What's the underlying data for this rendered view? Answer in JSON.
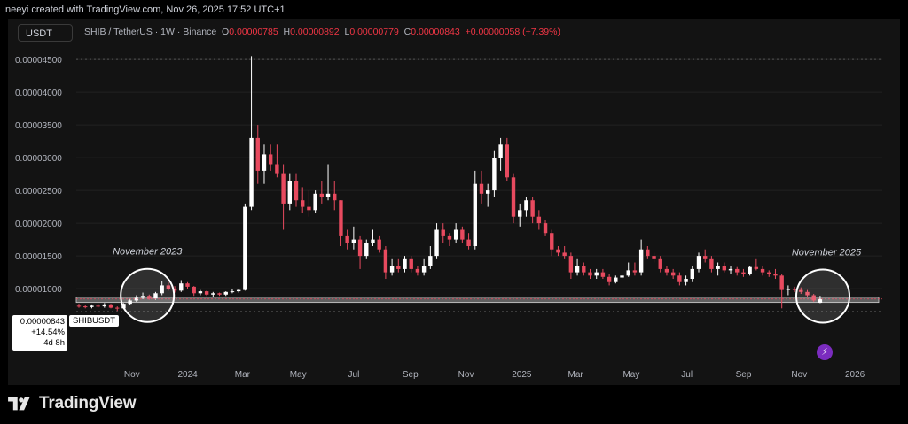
{
  "credit": "neeyi created with TradingView.com, Nov 26, 2025 17:52 UTC+1",
  "currency_button": "USDT",
  "header": {
    "symbol": "SHIB / TetherUS · 1W · Binance",
    "o_label": "O",
    "o_value": "0.00000785",
    "h_label": "H",
    "h_value": "0.00000892",
    "l_label": "L",
    "l_value": "0.00000779",
    "c_label": "C",
    "c_value": "0.00000843",
    "change": "+0.00000058 (+7.39%)"
  },
  "price_label": {
    "price": "0.00000843",
    "change_pct": "+14.54%",
    "countdown": "4d 8h"
  },
  "symbol_label": "SHIBUSDT",
  "brand": "TradingView",
  "colors": {
    "up": "#ffffff",
    "down": "#e84a5f",
    "background": "#131313",
    "grid": "#2a2a2a",
    "price_band": "#9e9e9e",
    "lightning_badge": "#7b2cbf"
  },
  "icons": {
    "logo": "tradingview-logo-icon",
    "badge": "lightning-icon"
  },
  "chart_data": {
    "type": "candlestick",
    "interval": "1W",
    "title": "SHIB / TetherUS · 1W · Binance",
    "y_axis": {
      "ticks": [
        1e-05,
        1.5e-05,
        2e-05,
        2.5e-05,
        3e-05,
        3.5e-05,
        4e-05,
        4.5e-05
      ],
      "tick_labels": [
        "0.00001000",
        "0.00001500",
        "0.00002000",
        "0.00002500",
        "0.00003000",
        "0.00003500",
        "0.00004000",
        "0.00004500"
      ],
      "range": [
        3.8e-06,
        4.65e-05
      ]
    },
    "x_axis": {
      "tick_labels": [
        "Nov",
        "2024",
        "Mar",
        "May",
        "Jul",
        "Sep",
        "Nov",
        "2025",
        "Mar",
        "May",
        "Jul",
        "Sep",
        "Nov",
        "2026"
      ],
      "tick_dates": [
        "2023-11-01",
        "2024-01-01",
        "2024-03-01",
        "2024-05-01",
        "2024-07-01",
        "2024-09-01",
        "2024-11-01",
        "2025-01-01",
        "2025-03-01",
        "2025-05-01",
        "2025-07-01",
        "2025-09-01",
        "2025-11-01",
        "2026-01-01"
      ],
      "range": [
        "2023-09-01",
        "2026-01-31"
      ]
    },
    "horizontal_band": {
      "low": 7.9e-06,
      "high": 8.7e-06
    },
    "annotations": [
      {
        "text": "November 2023",
        "date": "2023-11-15",
        "price": 8.7e-06,
        "shape": "circle"
      },
      {
        "text": "November 2025",
        "date": "2025-11-24",
        "price": 8.6e-06,
        "shape": "circle"
      }
    ],
    "candles": [
      {
        "date": "2023-09-01",
        "o": 7.4e-06,
        "h": 7.7e-06,
        "l": 7.1e-06,
        "c": 7.3e-06
      },
      {
        "date": "2023-09-08",
        "o": 7.3e-06,
        "h": 7.5e-06,
        "l": 7e-06,
        "c": 7.2e-06
      },
      {
        "date": "2023-09-15",
        "o": 7.2e-06,
        "h": 7.6e-06,
        "l": 7e-06,
        "c": 7.4e-06
      },
      {
        "date": "2023-09-22",
        "o": 7.4e-06,
        "h": 7.7e-06,
        "l": 7.1e-06,
        "c": 7.3e-06
      },
      {
        "date": "2023-09-29",
        "o": 7.3e-06,
        "h": 7.8e-06,
        "l": 7.1e-06,
        "c": 7.6e-06
      },
      {
        "date": "2023-10-06",
        "o": 7.6e-06,
        "h": 7.7e-06,
        "l": 7e-06,
        "c": 7.1e-06
      },
      {
        "date": "2023-10-13",
        "o": 7.1e-06,
        "h": 7.3e-06,
        "l": 6.6e-06,
        "c": 7e-06
      },
      {
        "date": "2023-10-20",
        "o": 7e-06,
        "h": 7.8e-06,
        "l": 6.9e-06,
        "c": 7.7e-06
      },
      {
        "date": "2023-10-27",
        "o": 7.7e-06,
        "h": 8.5e-06,
        "l": 7.5e-06,
        "c": 8.2e-06
      },
      {
        "date": "2023-11-03",
        "o": 8.2e-06,
        "h": 9e-06,
        "l": 8e-06,
        "c": 8.6e-06
      },
      {
        "date": "2023-11-10",
        "o": 8.6e-06,
        "h": 9.4e-06,
        "l": 8.4e-06,
        "c": 8.9e-06
      },
      {
        "date": "2023-11-17",
        "o": 8.9e-06,
        "h": 9.1e-06,
        "l": 8.3e-06,
        "c": 8.5e-06
      },
      {
        "date": "2023-11-24",
        "o": 8.5e-06,
        "h": 9.5e-06,
        "l": 8.3e-06,
        "c": 9.3e-06
      },
      {
        "date": "2023-12-01",
        "o": 9.3e-06,
        "h": 1.12e-05,
        "l": 9e-06,
        "c": 1.05e-05
      },
      {
        "date": "2023-12-08",
        "o": 1.05e-05,
        "h": 1.1e-05,
        "l": 9.7e-06,
        "c": 1e-05
      },
      {
        "date": "2023-12-15",
        "o": 1e-05,
        "h": 1.04e-05,
        "l": 9.4e-06,
        "c": 9.7e-06
      },
      {
        "date": "2023-12-22",
        "o": 9.7e-06,
        "h": 1.13e-05,
        "l": 9.5e-06,
        "c": 1.08e-05
      },
      {
        "date": "2023-12-29",
        "o": 1.08e-05,
        "h": 1.1e-05,
        "l": 1e-05,
        "c": 1.03e-05
      },
      {
        "date": "2024-01-05",
        "o": 1.03e-05,
        "h": 1.04e-05,
        "l": 8.9e-06,
        "c": 9.3e-06
      },
      {
        "date": "2024-01-12",
        "o": 9.3e-06,
        "h": 9.8e-06,
        "l": 9e-06,
        "c": 9.6e-06
      },
      {
        "date": "2024-01-19",
        "o": 9.6e-06,
        "h": 9.7e-06,
        "l": 8.9e-06,
        "c": 9.1e-06
      },
      {
        "date": "2024-01-26",
        "o": 9.1e-06,
        "h": 9.5e-06,
        "l": 8.8e-06,
        "c": 9.3e-06
      },
      {
        "date": "2024-02-02",
        "o": 9.3e-06,
        "h": 9.4e-06,
        "l": 8.9e-06,
        "c": 9.1e-06
      },
      {
        "date": "2024-02-09",
        "o": 9.1e-06,
        "h": 9.6e-06,
        "l": 8.9e-06,
        "c": 9.5e-06
      },
      {
        "date": "2024-02-16",
        "o": 9.5e-06,
        "h": 1e-05,
        "l": 9.3e-06,
        "c": 9.6e-06
      },
      {
        "date": "2024-02-23",
        "o": 9.6e-06,
        "h": 1e-05,
        "l": 9.4e-06,
        "c": 9.8e-06
      },
      {
        "date": "2024-03-01",
        "o": 9.8e-06,
        "h": 2.3e-05,
        "l": 9.7e-06,
        "c": 2.25e-05
      },
      {
        "date": "2024-03-08",
        "o": 2.25e-05,
        "h": 4.55e-05,
        "l": 2.2e-05,
        "c": 3.3e-05
      },
      {
        "date": "2024-03-15",
        "o": 3.3e-05,
        "h": 3.5e-05,
        "l": 2.6e-05,
        "c": 2.8e-05
      },
      {
        "date": "2024-03-22",
        "o": 2.8e-05,
        "h": 3.2e-05,
        "l": 2.6e-05,
        "c": 3.05e-05
      },
      {
        "date": "2024-03-29",
        "o": 3.05e-05,
        "h": 3.2e-05,
        "l": 2.8e-05,
        "c": 2.9e-05
      },
      {
        "date": "2024-04-05",
        "o": 2.9e-05,
        "h": 3.2e-05,
        "l": 2.7e-05,
        "c": 2.75e-05
      },
      {
        "date": "2024-04-12",
        "o": 2.75e-05,
        "h": 2.9e-05,
        "l": 1.9e-05,
        "c": 2.3e-05
      },
      {
        "date": "2024-04-19",
        "o": 2.3e-05,
        "h": 2.75e-05,
        "l": 2.2e-05,
        "c": 2.65e-05
      },
      {
        "date": "2024-04-26",
        "o": 2.65e-05,
        "h": 2.75e-05,
        "l": 2.25e-05,
        "c": 2.35e-05
      },
      {
        "date": "2024-05-03",
        "o": 2.35e-05,
        "h": 2.55e-05,
        "l": 2.15e-05,
        "c": 2.25e-05
      },
      {
        "date": "2024-05-10",
        "o": 2.25e-05,
        "h": 2.5e-05,
        "l": 2.1e-05,
        "c": 2.2e-05
      },
      {
        "date": "2024-05-17",
        "o": 2.2e-05,
        "h": 2.5e-05,
        "l": 2.15e-05,
        "c": 2.45e-05
      },
      {
        "date": "2024-05-24",
        "o": 2.45e-05,
        "h": 2.65e-05,
        "l": 2.3e-05,
        "c": 2.4e-05
      },
      {
        "date": "2024-05-31",
        "o": 2.4e-05,
        "h": 2.9e-05,
        "l": 2.35e-05,
        "c": 2.45e-05
      },
      {
        "date": "2024-06-07",
        "o": 2.45e-05,
        "h": 2.65e-05,
        "l": 2.2e-05,
        "c": 2.35e-05
      },
      {
        "date": "2024-06-14",
        "o": 2.35e-05,
        "h": 2.35e-05,
        "l": 1.65e-05,
        "c": 1.8e-05
      },
      {
        "date": "2024-06-21",
        "o": 1.8e-05,
        "h": 1.9e-05,
        "l": 1.6e-05,
        "c": 1.7e-05
      },
      {
        "date": "2024-06-28",
        "o": 1.7e-05,
        "h": 1.95e-05,
        "l": 1.6e-05,
        "c": 1.75e-05
      },
      {
        "date": "2024-07-05",
        "o": 1.75e-05,
        "h": 1.8e-05,
        "l": 1.3e-05,
        "c": 1.5e-05
      },
      {
        "date": "2024-07-12",
        "o": 1.5e-05,
        "h": 1.75e-05,
        "l": 1.45e-05,
        "c": 1.7e-05
      },
      {
        "date": "2024-07-19",
        "o": 1.7e-05,
        "h": 1.9e-05,
        "l": 1.65e-05,
        "c": 1.75e-05
      },
      {
        "date": "2024-07-26",
        "o": 1.75e-05,
        "h": 1.8e-05,
        "l": 1.55e-05,
        "c": 1.6e-05
      },
      {
        "date": "2024-08-02",
        "o": 1.6e-05,
        "h": 1.65e-05,
        "l": 1.15e-05,
        "c": 1.25e-05
      },
      {
        "date": "2024-08-09",
        "o": 1.25e-05,
        "h": 1.45e-05,
        "l": 1.2e-05,
        "c": 1.35e-05
      },
      {
        "date": "2024-08-16",
        "o": 1.35e-05,
        "h": 1.45e-05,
        "l": 1.25e-05,
        "c": 1.3e-05
      },
      {
        "date": "2024-08-23",
        "o": 1.3e-05,
        "h": 1.5e-05,
        "l": 1.25e-05,
        "c": 1.45e-05
      },
      {
        "date": "2024-08-30",
        "o": 1.45e-05,
        "h": 1.5e-05,
        "l": 1.25e-05,
        "c": 1.3e-05
      },
      {
        "date": "2024-09-06",
        "o": 1.3e-05,
        "h": 1.35e-05,
        "l": 1.2e-05,
        "c": 1.25e-05
      },
      {
        "date": "2024-09-13",
        "o": 1.25e-05,
        "h": 1.45e-05,
        "l": 1.2e-05,
        "c": 1.35e-05
      },
      {
        "date": "2024-09-20",
        "o": 1.35e-05,
        "h": 1.65e-05,
        "l": 1.3e-05,
        "c": 1.5e-05
      },
      {
        "date": "2024-09-27",
        "o": 1.5e-05,
        "h": 2e-05,
        "l": 1.45e-05,
        "c": 1.9e-05
      },
      {
        "date": "2024-10-04",
        "o": 1.9e-05,
        "h": 2e-05,
        "l": 1.7e-05,
        "c": 1.8e-05
      },
      {
        "date": "2024-10-11",
        "o": 1.8e-05,
        "h": 1.85e-05,
        "l": 1.65e-05,
        "c": 1.75e-05
      },
      {
        "date": "2024-10-18",
        "o": 1.75e-05,
        "h": 2e-05,
        "l": 1.7e-05,
        "c": 1.9e-05
      },
      {
        "date": "2024-10-25",
        "o": 1.9e-05,
        "h": 1.95e-05,
        "l": 1.7e-05,
        "c": 1.75e-05
      },
      {
        "date": "2024-11-01",
        "o": 1.75e-05,
        "h": 1.85e-05,
        "l": 1.6e-05,
        "c": 1.65e-05
      },
      {
        "date": "2024-11-08",
        "o": 1.65e-05,
        "h": 2.8e-05,
        "l": 1.6e-05,
        "c": 2.6e-05
      },
      {
        "date": "2024-11-15",
        "o": 2.6e-05,
        "h": 2.8e-05,
        "l": 2.3e-05,
        "c": 2.45e-05
      },
      {
        "date": "2024-11-22",
        "o": 2.45e-05,
        "h": 2.6e-05,
        "l": 2.25e-05,
        "c": 2.5e-05
      },
      {
        "date": "2024-11-29",
        "o": 2.5e-05,
        "h": 3.1e-05,
        "l": 2.4e-05,
        "c": 3e-05
      },
      {
        "date": "2024-12-06",
        "o": 3e-05,
        "h": 3.3e-05,
        "l": 2.8e-05,
        "c": 3.2e-05
      },
      {
        "date": "2024-12-13",
        "o": 3.2e-05,
        "h": 3.3e-05,
        "l": 2.65e-05,
        "c": 2.7e-05
      },
      {
        "date": "2024-12-20",
        "o": 2.7e-05,
        "h": 2.75e-05,
        "l": 2e-05,
        "c": 2.1e-05
      },
      {
        "date": "2024-12-27",
        "o": 2.1e-05,
        "h": 2.3e-05,
        "l": 1.95e-05,
        "c": 2.2e-05
      },
      {
        "date": "2025-01-03",
        "o": 2.2e-05,
        "h": 2.4e-05,
        "l": 2.1e-05,
        "c": 2.35e-05
      },
      {
        "date": "2025-01-10",
        "o": 2.35e-05,
        "h": 2.4e-05,
        "l": 2e-05,
        "c": 2.1e-05
      },
      {
        "date": "2025-01-17",
        "o": 2.1e-05,
        "h": 2.2e-05,
        "l": 1.9e-05,
        "c": 2e-05
      },
      {
        "date": "2025-01-24",
        "o": 2e-05,
        "h": 2.05e-05,
        "l": 1.8e-05,
        "c": 1.85e-05
      },
      {
        "date": "2025-01-31",
        "o": 1.85e-05,
        "h": 1.9e-05,
        "l": 1.5e-05,
        "c": 1.6e-05
      },
      {
        "date": "2025-02-07",
        "o": 1.6e-05,
        "h": 1.65e-05,
        "l": 1.5e-05,
        "c": 1.55e-05
      },
      {
        "date": "2025-02-14",
        "o": 1.55e-05,
        "h": 1.65e-05,
        "l": 1.45e-05,
        "c": 1.5e-05
      },
      {
        "date": "2025-02-21",
        "o": 1.5e-05,
        "h": 1.55e-05,
        "l": 1.15e-05,
        "c": 1.25e-05
      },
      {
        "date": "2025-02-28",
        "o": 1.25e-05,
        "h": 1.45e-05,
        "l": 1.2e-05,
        "c": 1.35e-05
      },
      {
        "date": "2025-03-07",
        "o": 1.35e-05,
        "h": 1.4e-05,
        "l": 1.2e-05,
        "c": 1.25e-05
      },
      {
        "date": "2025-03-14",
        "o": 1.25e-05,
        "h": 1.3e-05,
        "l": 1.15e-05,
        "c": 1.2e-05
      },
      {
        "date": "2025-03-21",
        "o": 1.2e-05,
        "h": 1.3e-05,
        "l": 1.15e-05,
        "c": 1.25e-05
      },
      {
        "date": "2025-03-28",
        "o": 1.25e-05,
        "h": 1.3e-05,
        "l": 1.15e-05,
        "c": 1.18e-05
      },
      {
        "date": "2025-04-04",
        "o": 1.18e-05,
        "h": 1.22e-05,
        "l": 1.05e-05,
        "c": 1.1e-05
      },
      {
        "date": "2025-04-11",
        "o": 1.1e-05,
        "h": 1.2e-05,
        "l": 1.08e-05,
        "c": 1.17e-05
      },
      {
        "date": "2025-04-18",
        "o": 1.17e-05,
        "h": 1.23e-05,
        "l": 1.15e-05,
        "c": 1.2e-05
      },
      {
        "date": "2025-04-25",
        "o": 1.2e-05,
        "h": 1.4e-05,
        "l": 1.18e-05,
        "c": 1.28e-05
      },
      {
        "date": "2025-05-02",
        "o": 1.28e-05,
        "h": 1.4e-05,
        "l": 1.2e-05,
        "c": 1.25e-05
      },
      {
        "date": "2025-05-09",
        "o": 1.25e-05,
        "h": 1.75e-05,
        "l": 1.2e-05,
        "c": 1.6e-05
      },
      {
        "date": "2025-05-16",
        "o": 1.6e-05,
        "h": 1.65e-05,
        "l": 1.45e-05,
        "c": 1.5e-05
      },
      {
        "date": "2025-05-23",
        "o": 1.5e-05,
        "h": 1.55e-05,
        "l": 1.4e-05,
        "c": 1.45e-05
      },
      {
        "date": "2025-05-30",
        "o": 1.45e-05,
        "h": 1.5e-05,
        "l": 1.25e-05,
        "c": 1.3e-05
      },
      {
        "date": "2025-06-06",
        "o": 1.3e-05,
        "h": 1.35e-05,
        "l": 1.2e-05,
        "c": 1.25e-05
      },
      {
        "date": "2025-06-13",
        "o": 1.25e-05,
        "h": 1.3e-05,
        "l": 1.15e-05,
        "c": 1.2e-05
      },
      {
        "date": "2025-06-20",
        "o": 1.2e-05,
        "h": 1.25e-05,
        "l": 1.05e-05,
        "c": 1.1e-05
      },
      {
        "date": "2025-06-27",
        "o": 1.1e-05,
        "h": 1.2e-05,
        "l": 1.05e-05,
        "c": 1.15e-05
      },
      {
        "date": "2025-07-04",
        "o": 1.15e-05,
        "h": 1.35e-05,
        "l": 1.1e-05,
        "c": 1.3e-05
      },
      {
        "date": "2025-07-11",
        "o": 1.3e-05,
        "h": 1.55e-05,
        "l": 1.25e-05,
        "c": 1.5e-05
      },
      {
        "date": "2025-07-18",
        "o": 1.5e-05,
        "h": 1.6e-05,
        "l": 1.4e-05,
        "c": 1.45e-05
      },
      {
        "date": "2025-07-25",
        "o": 1.45e-05,
        "h": 1.5e-05,
        "l": 1.25e-05,
        "c": 1.3e-05
      },
      {
        "date": "2025-08-01",
        "o": 1.3e-05,
        "h": 1.4e-05,
        "l": 1.2e-05,
        "c": 1.35e-05
      },
      {
        "date": "2025-08-08",
        "o": 1.35e-05,
        "h": 1.4e-05,
        "l": 1.25e-05,
        "c": 1.28e-05
      },
      {
        "date": "2025-08-15",
        "o": 1.28e-05,
        "h": 1.35e-05,
        "l": 1.22e-05,
        "c": 1.3e-05
      },
      {
        "date": "2025-08-22",
        "o": 1.3e-05,
        "h": 1.33e-05,
        "l": 1.2e-05,
        "c": 1.25e-05
      },
      {
        "date": "2025-08-29",
        "o": 1.25e-05,
        "h": 1.3e-05,
        "l": 1.18e-05,
        "c": 1.22e-05
      },
      {
        "date": "2025-09-05",
        "o": 1.22e-05,
        "h": 1.35e-05,
        "l": 1.2e-05,
        "c": 1.33e-05
      },
      {
        "date": "2025-09-12",
        "o": 1.33e-05,
        "h": 1.45e-05,
        "l": 1.28e-05,
        "c": 1.3e-05
      },
      {
        "date": "2025-09-19",
        "o": 1.3e-05,
        "h": 1.35e-05,
        "l": 1.2e-05,
        "c": 1.25e-05
      },
      {
        "date": "2025-09-26",
        "o": 1.25e-05,
        "h": 1.28e-05,
        "l": 1.18e-05,
        "c": 1.22e-05
      },
      {
        "date": "2025-10-03",
        "o": 1.22e-05,
        "h": 1.3e-05,
        "l": 1.15e-05,
        "c": 1.2e-05
      },
      {
        "date": "2025-10-10",
        "o": 1.2e-05,
        "h": 1.22e-05,
        "l": 7e-06,
        "c": 9.8e-06
      },
      {
        "date": "2025-10-17",
        "o": 9.8e-06,
        "h": 1.05e-05,
        "l": 9e-06,
        "c": 1e-05
      },
      {
        "date": "2025-10-24",
        "o": 1e-05,
        "h": 1.03e-05,
        "l": 9.5e-06,
        "c": 9.8e-06
      },
      {
        "date": "2025-10-31",
        "o": 9.8e-06,
        "h": 1.02e-05,
        "l": 9.2e-06,
        "c": 9.5e-06
      },
      {
        "date": "2025-11-07",
        "o": 9.5e-06,
        "h": 9.8e-06,
        "l": 8.8e-06,
        "c": 9e-06
      },
      {
        "date": "2025-11-14",
        "o": 9e-06,
        "h": 9.2e-06,
        "l": 8e-06,
        "c": 8.2e-06
      },
      {
        "date": "2025-11-21",
        "o": 7.85e-06,
        "h": 8.92e-06,
        "l": 7.79e-06,
        "c": 8.43e-06
      }
    ]
  }
}
